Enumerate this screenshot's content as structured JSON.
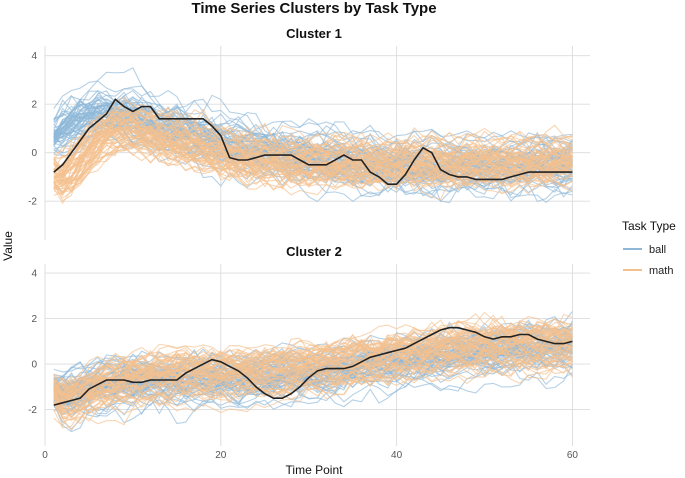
{
  "chart_data": [
    {
      "type": "line",
      "title": "Time Series Clusters by Task Type",
      "panel_title": "Cluster 1",
      "xlabel": "Time Point",
      "ylabel": "Value",
      "xlim": [
        0,
        62
      ],
      "ylim": [
        -3.6,
        4.4
      ],
      "x_ticks": [
        0,
        20,
        40,
        60
      ],
      "y_ticks": [
        -2,
        0,
        2,
        4
      ],
      "grid": true,
      "legend": {
        "title": "Task Type",
        "position": "right",
        "entries": [
          "ball",
          "math"
        ]
      },
      "colors": {
        "ball": "#8fb8d8",
        "math": "#f4c08d",
        "centroid": "#222222"
      },
      "series_note_count": {
        "ball": 60,
        "math": 60
      },
      "centroid": {
        "x": [
          1,
          2,
          3,
          4,
          5,
          6,
          7,
          8,
          9,
          10,
          11,
          12,
          13,
          14,
          15,
          16,
          17,
          18,
          19,
          20,
          21,
          22,
          23,
          24,
          25,
          26,
          27,
          28,
          29,
          30,
          31,
          32,
          33,
          34,
          35,
          36,
          37,
          38,
          39,
          40,
          41,
          42,
          43,
          44,
          45,
          46,
          47,
          48,
          49,
          50,
          51,
          52,
          53,
          54,
          55,
          56,
          57,
          58,
          59,
          60
        ],
        "y": [
          -0.8,
          -0.5,
          0.0,
          0.5,
          1.0,
          1.3,
          1.6,
          2.2,
          1.9,
          1.7,
          1.9,
          1.9,
          1.4,
          1.4,
          1.4,
          1.4,
          1.4,
          1.4,
          1.1,
          0.7,
          -0.2,
          -0.3,
          -0.3,
          -0.2,
          -0.1,
          -0.1,
          -0.1,
          -0.1,
          -0.3,
          -0.5,
          -0.5,
          -0.5,
          -0.3,
          -0.1,
          -0.3,
          -0.3,
          -0.8,
          -1.0,
          -1.3,
          -1.3,
          -0.9,
          -0.3,
          0.2,
          0.0,
          -0.7,
          -0.9,
          -1.0,
          -1.0,
          -1.1,
          -1.1,
          -1.1,
          -1.1,
          -1.0,
          -0.9,
          -0.8,
          -0.8,
          -0.8,
          -0.8,
          -0.8,
          -0.8
        ]
      },
      "ball_mean": [
        1.0,
        1.1,
        1.3,
        1.4,
        1.5,
        1.6,
        1.5,
        1.5,
        1.4,
        1.3,
        1.2,
        1.1,
        1.0,
        0.9,
        0.8,
        0.7,
        0.6,
        0.5,
        0.4,
        0.3,
        0.2,
        0.1,
        0.0,
        0.0,
        -0.1,
        -0.1,
        -0.2,
        -0.2,
        -0.3,
        -0.3,
        -0.3,
        -0.4,
        -0.4,
        -0.4,
        -0.5,
        -0.5,
        -0.5,
        -0.5,
        -0.6,
        -0.6,
        -0.6,
        -0.6,
        -0.6,
        -0.6,
        -0.6,
        -0.6,
        -0.6,
        -0.6,
        -0.6,
        -0.6,
        -0.6,
        -0.6,
        -0.6,
        -0.6,
        -0.6,
        -0.6,
        -0.6,
        -0.6,
        -0.6,
        -0.5
      ],
      "math_mean": [
        -1.4,
        -1.1,
        -0.6,
        -0.1,
        0.3,
        0.7,
        0.9,
        1.0,
        1.0,
        0.9,
        0.8,
        0.7,
        0.6,
        0.5,
        0.4,
        0.3,
        0.2,
        0.1,
        0.0,
        -0.1,
        -0.2,
        -0.2,
        -0.3,
        -0.3,
        -0.3,
        -0.3,
        -0.4,
        -0.4,
        -0.4,
        -0.4,
        -0.4,
        -0.4,
        -0.4,
        -0.4,
        -0.4,
        -0.4,
        -0.4,
        -0.4,
        -0.4,
        -0.4,
        -0.4,
        -0.4,
        -0.4,
        -0.4,
        -0.4,
        -0.4,
        -0.4,
        -0.4,
        -0.4,
        -0.4,
        -0.4,
        -0.4,
        -0.4,
        -0.4,
        -0.4,
        -0.3,
        -0.3,
        -0.3,
        -0.3,
        -0.3
      ]
    },
    {
      "type": "line",
      "panel_title": "Cluster 2",
      "xlim": [
        0,
        62
      ],
      "ylim": [
        -3.6,
        4.4
      ],
      "x_ticks": [
        0,
        20,
        40,
        60
      ],
      "y_ticks": [
        -2,
        0,
        2,
        4
      ],
      "grid": true,
      "series_note_count": {
        "ball": 60,
        "math": 60
      },
      "centroid": {
        "x": [
          1,
          2,
          3,
          4,
          5,
          6,
          7,
          8,
          9,
          10,
          11,
          12,
          13,
          14,
          15,
          16,
          17,
          18,
          19,
          20,
          21,
          22,
          23,
          24,
          25,
          26,
          27,
          28,
          29,
          30,
          31,
          32,
          33,
          34,
          35,
          36,
          37,
          38,
          39,
          40,
          41,
          42,
          43,
          44,
          45,
          46,
          47,
          48,
          49,
          50,
          51,
          52,
          53,
          54,
          55,
          56,
          57,
          58,
          59,
          60
        ],
        "y": [
          -1.8,
          -1.7,
          -1.6,
          -1.5,
          -1.1,
          -0.9,
          -0.7,
          -0.7,
          -0.7,
          -0.8,
          -0.8,
          -0.7,
          -0.7,
          -0.7,
          -0.7,
          -0.4,
          -0.2,
          0.0,
          0.2,
          0.1,
          -0.1,
          -0.3,
          -0.6,
          -1.0,
          -1.3,
          -1.5,
          -1.5,
          -1.3,
          -1.0,
          -0.6,
          -0.3,
          -0.2,
          -0.2,
          -0.2,
          -0.1,
          0.1,
          0.3,
          0.4,
          0.5,
          0.6,
          0.7,
          0.9,
          1.1,
          1.3,
          1.5,
          1.6,
          1.6,
          1.5,
          1.4,
          1.2,
          1.1,
          1.2,
          1.2,
          1.3,
          1.3,
          1.1,
          1.0,
          0.9,
          0.9,
          1.0
        ]
      },
      "ball_mean": [
        -1.6,
        -1.4,
        -1.2,
        -1.0,
        -0.9,
        -0.8,
        -0.7,
        -0.7,
        -0.6,
        -0.6,
        -0.6,
        -0.6,
        -0.6,
        -0.6,
        -0.6,
        -0.6,
        -0.5,
        -0.5,
        -0.5,
        -0.5,
        -0.5,
        -0.5,
        -0.4,
        -0.4,
        -0.4,
        -0.4,
        -0.3,
        -0.3,
        -0.3,
        -0.2,
        -0.2,
        -0.1,
        -0.1,
        0.0,
        0.0,
        0.1,
        0.1,
        0.2,
        0.2,
        0.3,
        0.3,
        0.4,
        0.4,
        0.5,
        0.5,
        0.6,
        0.6,
        0.6,
        0.7,
        0.7,
        0.7,
        0.7,
        0.8,
        0.8,
        0.8,
        0.8,
        0.8,
        0.9,
        0.9,
        1.0
      ],
      "math_mean": [
        -1.9,
        -1.8,
        -1.6,
        -1.4,
        -1.2,
        -1.0,
        -0.9,
        -0.8,
        -0.7,
        -0.6,
        -0.6,
        -0.5,
        -0.5,
        -0.5,
        -0.4,
        -0.4,
        -0.4,
        -0.4,
        -0.4,
        -0.4,
        -0.4,
        -0.4,
        -0.4,
        -0.4,
        -0.3,
        -0.3,
        -0.3,
        -0.2,
        -0.2,
        -0.1,
        -0.1,
        0.0,
        0.0,
        0.1,
        0.1,
        0.2,
        0.2,
        0.3,
        0.3,
        0.4,
        0.4,
        0.5,
        0.5,
        0.6,
        0.6,
        0.6,
        0.7,
        0.7,
        0.7,
        0.7,
        0.8,
        0.8,
        0.8,
        0.8,
        0.8,
        0.8,
        0.8,
        0.8,
        0.8,
        0.8
      ]
    }
  ]
}
